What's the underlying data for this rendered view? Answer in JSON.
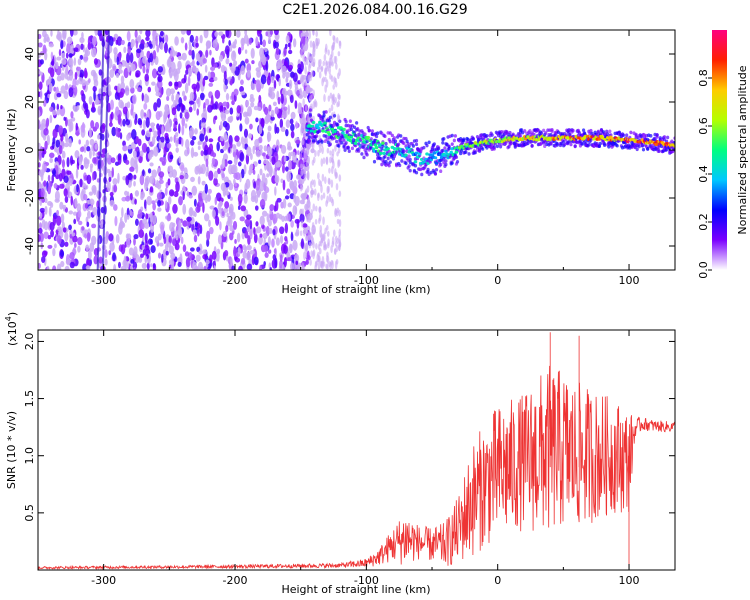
{
  "title": "C2E1.2026.084.00.16.G29",
  "colors": {
    "snr_line": "#ee3333",
    "axes": "#000000",
    "scatter_base": "#6a1fe0",
    "scatter_light": "#c9a9f5",
    "colorbar": [
      "#ffffff",
      "#7b00ff",
      "#0000ff",
      "#00c8ff",
      "#00ff80",
      "#b4ff00",
      "#ffcc00",
      "#ff2000",
      "#ff0080"
    ]
  },
  "chart_data": [
    {
      "type": "heatmap",
      "title": "C2E1.2026.084.00.16.G29",
      "xlabel": "Height of straight line (km)",
      "ylabel": "Frequency (Hz)",
      "xlim": [
        -350,
        135
      ],
      "ylim": [
        -50,
        50
      ],
      "xticks": [
        -300,
        -200,
        -100,
        0,
        100
      ],
      "yticks": [
        -40,
        -20,
        0,
        20,
        40
      ],
      "colorbar": {
        "label": "Normalized spectral amplitude",
        "range": [
          0.0,
          1.0
        ],
        "ticks": [
          "0.0",
          "0.2",
          "0.4",
          "0.6",
          "0.8"
        ],
        "tick_values": [
          0.0,
          0.2,
          0.4,
          0.6,
          0.8
        ]
      },
      "ridge": {
        "x": [
          -145,
          -130,
          -110,
          -90,
          -70,
          -55,
          -45,
          -30,
          -10,
          0,
          20,
          40,
          60,
          80,
          100,
          120,
          135
        ],
        "freq": [
          10,
          9,
          5,
          1,
          -1,
          -4,
          -3,
          1,
          3,
          4,
          5,
          5,
          5,
          5,
          4,
          3,
          2
        ],
        "amplitude": [
          0.5,
          0.55,
          0.6,
          0.55,
          0.5,
          0.45,
          0.4,
          0.6,
          0.7,
          0.75,
          0.8,
          0.85,
          0.9,
          0.9,
          0.95,
          0.95,
          1.0
        ]
      },
      "noise_region": {
        "x_range": [
          -350,
          -140
        ],
        "amplitude_range": [
          0.05,
          0.2
        ]
      }
    },
    {
      "type": "line",
      "xlabel": "Height of straight line (km)",
      "ylabel": "SNR (10 * v/v)",
      "scale_note": "(x10",
      "scale_exp": "4",
      "scale_suffix": ")",
      "xlim": [
        -350,
        135
      ],
      "ylim": [
        0,
        2.1
      ],
      "xticks": [
        -300,
        -200,
        -100,
        0,
        100
      ],
      "yticks": [
        "0.5",
        "1.0",
        "1.5",
        "2.0"
      ],
      "ytick_values": [
        0.5,
        1.0,
        1.5,
        2.0
      ],
      "envelope": {
        "x": [
          -350,
          -200,
          -120,
          -100,
          -90,
          -80,
          -70,
          -60,
          -50,
          -40,
          -30,
          -20,
          -10,
          0,
          10,
          20,
          30,
          40,
          50,
          60,
          70,
          80,
          90,
          100,
          105,
          110,
          120,
          135
        ],
        "mean": [
          0.02,
          0.03,
          0.04,
          0.06,
          0.12,
          0.22,
          0.28,
          0.24,
          0.22,
          0.22,
          0.35,
          0.6,
          0.75,
          0.85,
          0.9,
          0.95,
          1.0,
          1.05,
          1.05,
          1.0,
          1.0,
          1.0,
          1.0,
          0.95,
          1.25,
          1.28,
          1.26,
          1.25
        ],
        "spread": [
          0.01,
          0.015,
          0.02,
          0.04,
          0.08,
          0.15,
          0.25,
          0.15,
          0.15,
          0.2,
          0.3,
          0.5,
          0.55,
          0.6,
          0.6,
          0.6,
          0.7,
          0.75,
          0.7,
          0.65,
          0.6,
          0.55,
          0.5,
          0.45,
          0.08,
          0.06,
          0.05,
          0.05
        ]
      },
      "spikes": [
        {
          "x": 40,
          "y": 2.08
        },
        {
          "x": 62,
          "y": 2.05
        },
        {
          "x": 100,
          "y": 0.02
        }
      ]
    }
  ]
}
